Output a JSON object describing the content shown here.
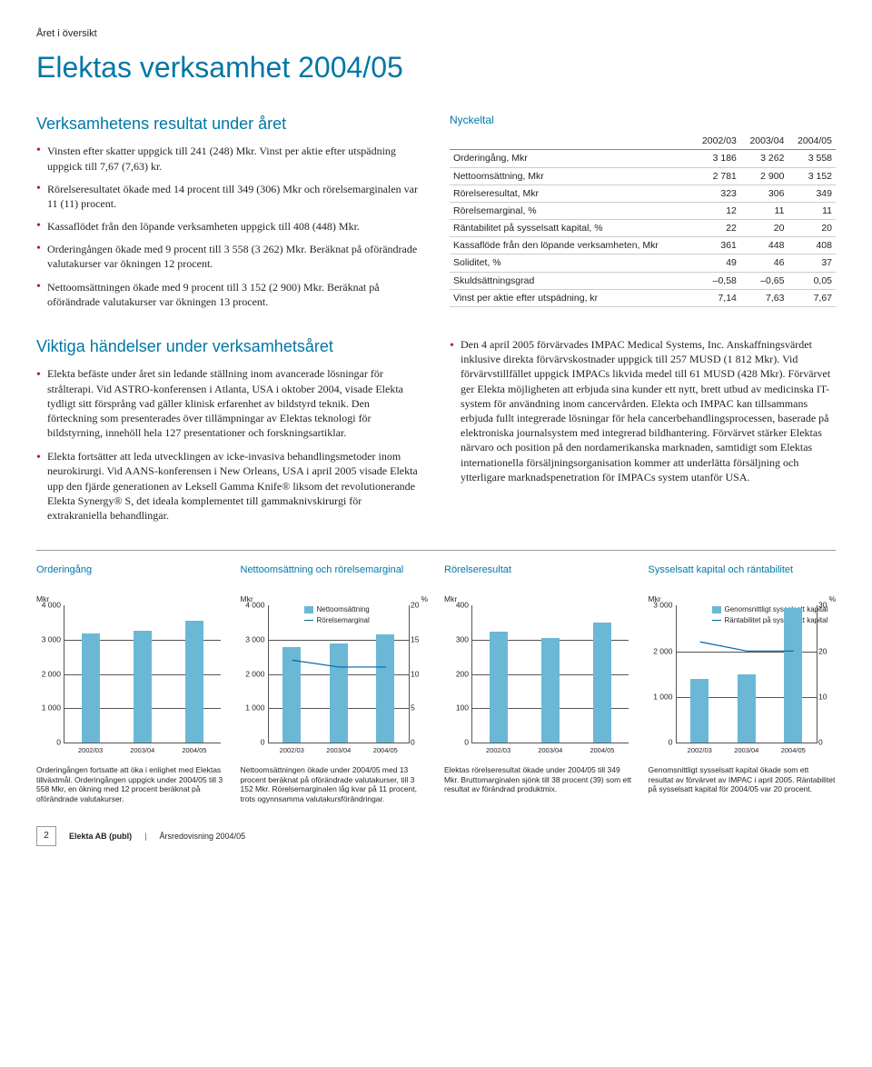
{
  "kicker": "Året i översikt",
  "page_title": "Elektas verksamhet 2004/05",
  "section_results_heading": "Verksamhetens resultat under året",
  "results_bullets": [
    "Vinsten efter skatter uppgick till 241 (248) Mkr. Vinst per aktie efter utspädning uppgick till 7,67 (7,63) kr.",
    "Rörelseresultatet ökade med 14 procent till 349 (306) Mkr och rörelsemarginalen var 11 (11) procent.",
    "Kassaflödet från den löpande verksamheten uppgick till 408 (448) Mkr.",
    "Orderingången ökade med 9 procent till 3 558 (3 262) Mkr. Beräknat på oförändrade valutakurser var ökningen 12 procent.",
    "Nettoomsättningen ökade med 9 procent till 3 152 (2 900) Mkr. Beräknat på oförändrade valutakurser var ökningen 13 procent."
  ],
  "nyckeltal_heading": "Nyckeltal",
  "nyckeltal_table": {
    "columns": [
      "",
      "2002/03",
      "2003/04",
      "2004/05"
    ],
    "rows": [
      [
        "Orderingång, Mkr",
        "3 186",
        "3 262",
        "3 558"
      ],
      [
        "Nettoomsättning, Mkr",
        "2 781",
        "2 900",
        "3 152"
      ],
      [
        "Rörelseresultat, Mkr",
        "323",
        "306",
        "349"
      ],
      [
        "Rörelsemarginal, %",
        "12",
        "11",
        "11"
      ],
      [
        "Räntabilitet på sysselsatt kapital, %",
        "22",
        "20",
        "20"
      ],
      [
        "Kassaflöde från den löpande verksamheten, Mkr",
        "361",
        "448",
        "408"
      ],
      [
        "Soliditet, %",
        "49",
        "46",
        "37"
      ],
      [
        "Skuldsättningsgrad",
        "–0,58",
        "–0,65",
        "0,05"
      ],
      [
        "Vinst per aktie efter utspädning, kr",
        "7,14",
        "7,63",
        "7,67"
      ]
    ]
  },
  "events_heading": "Viktiga händelser under verksamhetsåret",
  "events_left": [
    "Elekta befäste under året sin ledande ställning inom avancerade lösningar för strålterapi. Vid ASTRO-konferensen i Atlanta, USA i oktober 2004, visade Elekta tydligt sitt försprång vad gäller klinisk erfarenhet av bildstyrd teknik. Den förteckning som presenterades över tillämpningar av Elektas teknologi för bildstyrning, innehöll hela 127 presentationer och forskningsartiklar.",
    "Elekta fortsätter att leda utvecklingen av icke-invasiva behandlingsmetoder inom neurokirurgi. Vid AANS-konferensen i New Orleans, USA i april 2005 visade Elekta upp den fjärde generationen av Leksell Gamma Knife® liksom det revolutionerande Elekta Synergy® S, det ideala komplementet till gammaknivskirurgi för extrakraniella behandlingar."
  ],
  "events_right": [
    "Den 4 april 2005 förvärvades IMPAC Medical Systems, Inc. Anskaffningsvärdet inklusive direkta förvärvskostnader uppgick till 257 MUSD (1 812 Mkr). Vid förvärvstillfället uppgick IMPACs likvida medel till 61 MUSD (428 Mkr). Förvärvet ger Elekta möjligheten att erbjuda sina kunder ett nytt, brett utbud av medicinska IT-system för användning inom cancervården. Elekta och IMPAC kan tillsammans erbjuda fullt integrerade lösningar för hela cancerbehandlingsprocessen, baserade på elektroniska journalsystem med integrerad bildhantering. Förvärvet stärker Elektas närvaro och position på den nordamerikanska marknaden, samtidigt som Elektas internationella försäljningsorganisation kommer att underlätta försäljning och ytterligare marknadspenetration för IMPACs system utanför USA."
  ],
  "charts": {
    "categories": [
      "2002/03",
      "2003/04",
      "2004/05"
    ],
    "bar_color": "#6bb8d6",
    "line_color": "#0066a4",
    "grid_color": "#555555",
    "chart1": {
      "title": "Orderingång",
      "unit_left": "Mkr",
      "y_max": 4000,
      "y_ticks": [
        "4 000",
        "3 000",
        "2 000",
        "1 000",
        "0"
      ],
      "bars": [
        3186,
        3262,
        3558
      ],
      "caption": "Orderingången fortsatte att öka i enlighet med Elektas tillväxtmål. Orderingången uppgick under 2004/05 till 3 558 Mkr, en ökning med 12 procent beräknat på oförändrade valutakurser."
    },
    "chart2": {
      "title": "Nettoomsättning och rörelsemarginal",
      "unit_left": "Mkr",
      "unit_right": "%",
      "y_max": 4000,
      "y_ticks": [
        "4 000",
        "3 000",
        "2 000",
        "1 000",
        "0"
      ],
      "y2_max": 20,
      "y2_ticks": [
        "20",
        "15",
        "10",
        "5",
        "0"
      ],
      "bars": [
        2781,
        2900,
        3152
      ],
      "line": [
        12,
        11,
        11
      ],
      "legend": [
        "Nettoomsättning",
        "Rörelsemarginal"
      ],
      "caption": "Nettoomsättningen ökade under 2004/05 med 13 procent beräknat på oförändrade valutakurser, till 3 152 Mkr. Rörelsemarginalen låg kvar på 11 procent, trots ogynnsamma valutakursförändringar."
    },
    "chart3": {
      "title": "Rörelseresultat",
      "unit_left": "Mkr",
      "y_max": 400,
      "y_ticks": [
        "400",
        "300",
        "200",
        "100",
        "0"
      ],
      "bars": [
        323,
        306,
        349
      ],
      "caption": "Elektas rörelseresultat ökade under 2004/05 till 349 Mkr. Bruttomarginalen sjönk till 38 procent (39) som ett resultat av förändrad produktmix."
    },
    "chart4": {
      "title": "Sysselsatt kapital och räntabilitet",
      "unit_left": "Mkr",
      "unit_right": "%",
      "y_max": 3000,
      "y_ticks": [
        "3 000",
        "2 000",
        "1 000",
        "0"
      ],
      "y2_max": 30,
      "y2_ticks": [
        "30",
        "20",
        "10",
        "0"
      ],
      "bars": [
        1400,
        1500,
        2950
      ],
      "line": [
        22,
        20,
        20
      ],
      "legend": [
        "Genomsnittligt sysselsatt kapital",
        "Räntabilitet på sysselsatt kapital"
      ],
      "caption": "Genomsnittligt sysselsatt kapital ökade som ett resultat av förvärvet av IMPAC i april 2005. Räntabilitet på sysselsatt kapital för 2004/05 var 20 procent."
    }
  },
  "footer": {
    "page": "2",
    "company": "Elekta AB (publ)",
    "doc": "Årsredovisning 2004/05"
  }
}
